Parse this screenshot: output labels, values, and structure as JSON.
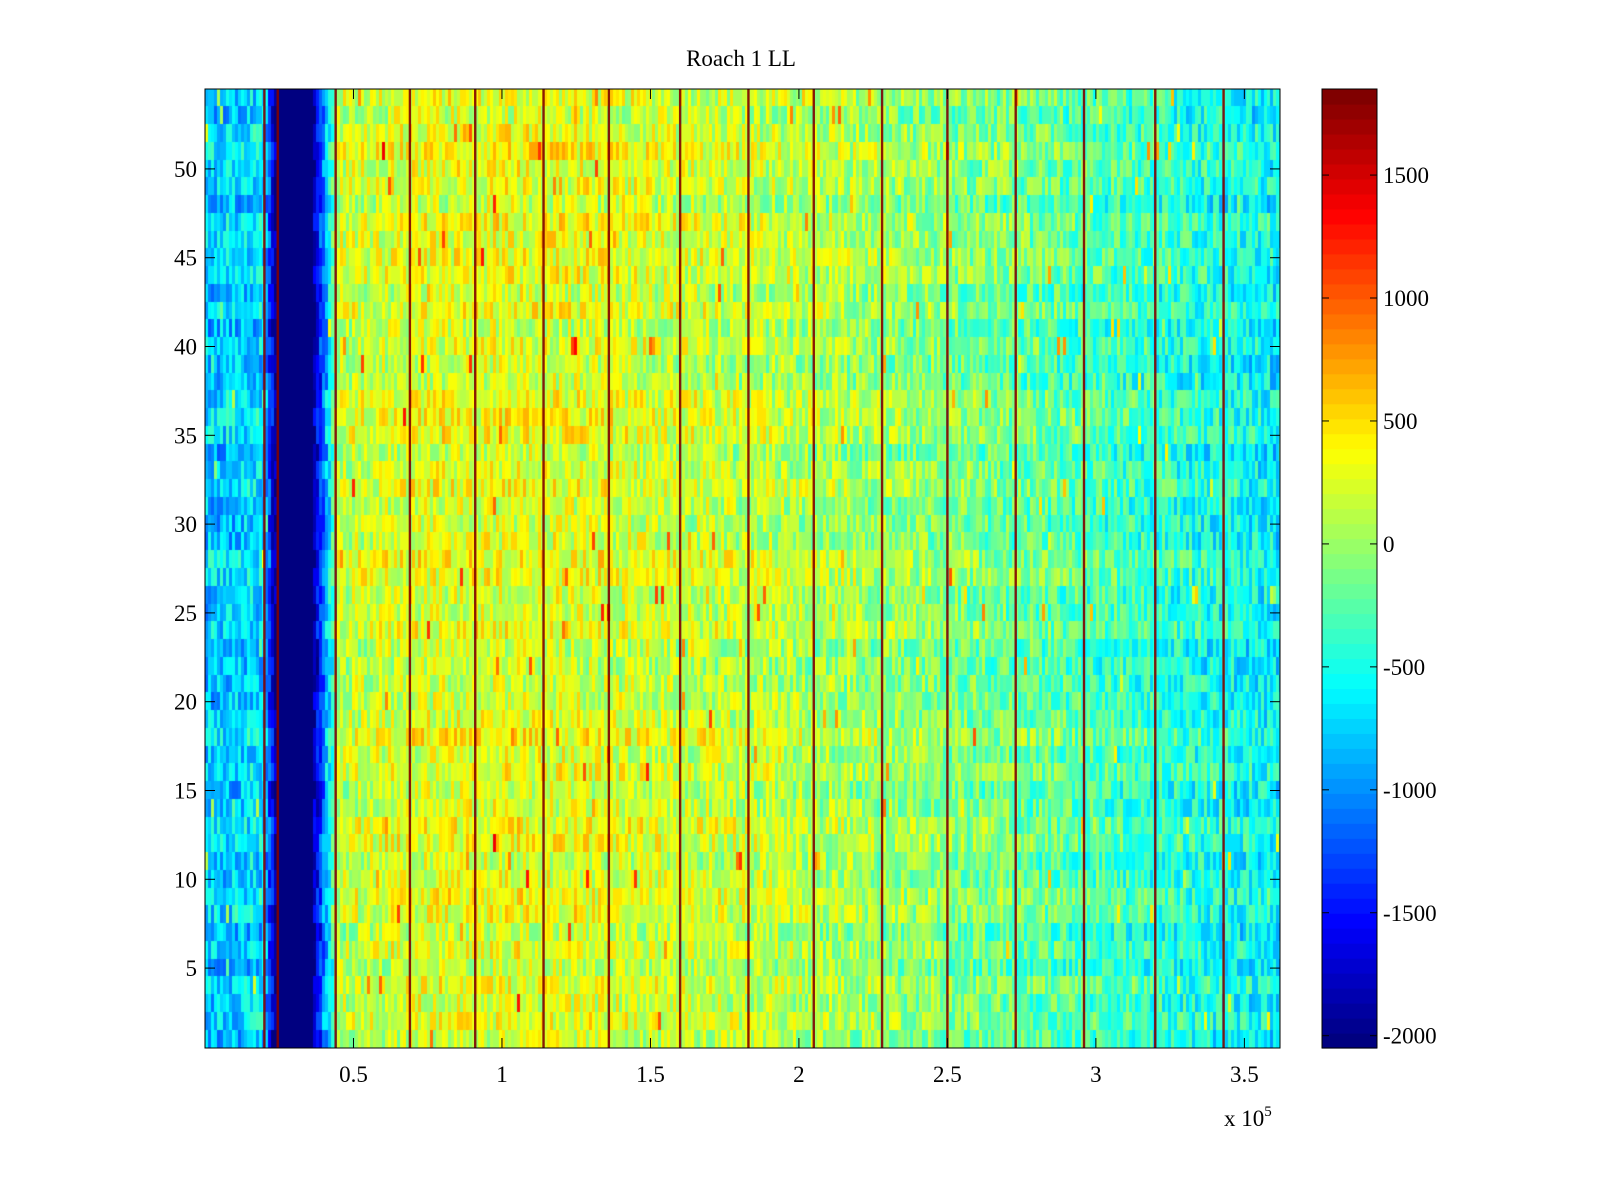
{
  "chart_data": {
    "type": "heatmap",
    "title": "Roach 1 LL",
    "xlabel": "",
    "ylabel": "",
    "x_multiplier_label": "x 10",
    "x_multiplier_exponent": "5",
    "xlim": [
      0,
      3.62
    ],
    "ylim": [
      0.5,
      54.5
    ],
    "x_ticks": [
      0.5,
      1,
      1.5,
      2,
      2.5,
      3,
      3.5
    ],
    "x_tick_labels": [
      "0.5",
      "1",
      "1.5",
      "2",
      "2.5",
      "3",
      "3.5"
    ],
    "y_ticks": [
      5,
      10,
      15,
      20,
      25,
      30,
      35,
      40,
      45,
      50
    ],
    "y_tick_labels": [
      "5",
      "10",
      "15",
      "20",
      "25",
      "30",
      "35",
      "40",
      "45",
      "50"
    ],
    "n_rows": 54,
    "colormap": "jet",
    "colorbar": {
      "clim": [
        -2050,
        1850
      ],
      "ticks": [
        -2000,
        -1500,
        -1000,
        -500,
        0,
        500,
        1000,
        1500
      ],
      "tick_labels": [
        "-2000",
        "-1500",
        "-1000",
        "-500",
        "0",
        "500",
        "1000",
        "1500"
      ],
      "levels": 64
    },
    "baseline_profile": {
      "x": [
        0,
        0.2,
        0.24,
        0.36,
        0.45,
        0.7,
        1.0,
        1.3,
        1.6,
        2.0,
        2.4,
        2.8,
        3.1,
        3.4,
        3.62
      ],
      "value": [
        -800,
        -700,
        -2050,
        -2050,
        150,
        250,
        280,
        250,
        180,
        100,
        -50,
        -200,
        -350,
        -500,
        -600
      ]
    },
    "blank_band": {
      "x_range": [
        0.24,
        0.36
      ],
      "value": -2050
    },
    "spike_lines_x": [
      0.2,
      0.245,
      0.44,
      0.69,
      0.91,
      1.14,
      1.36,
      1.6,
      1.83,
      2.05,
      2.28,
      2.5,
      2.73,
      2.96,
      3.2,
      3.43
    ],
    "spike_value": 1850
  }
}
